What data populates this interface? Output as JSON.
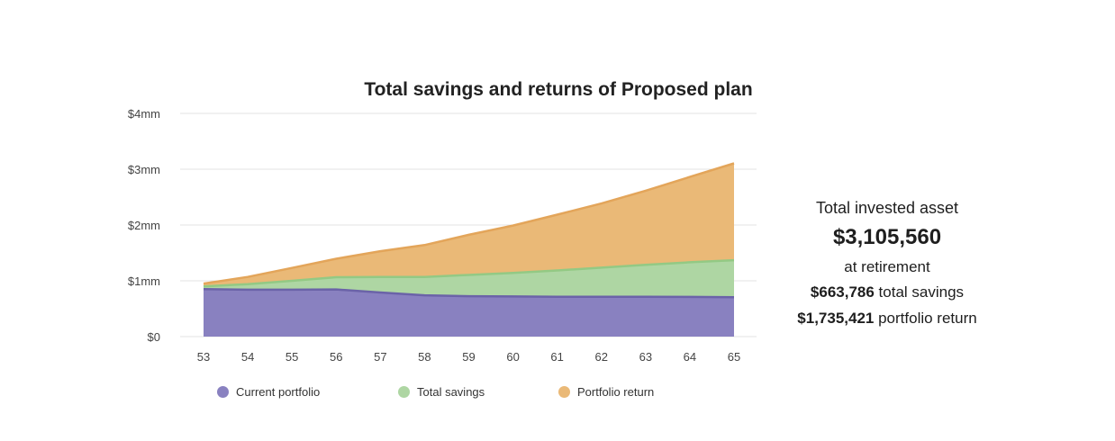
{
  "colors": {
    "current": "#8981c0",
    "savings": "#aed6a3",
    "return": "#eab977",
    "current_line": "#6b63a8",
    "savings_line": "#93c984",
    "return_line": "#e3a55a",
    "grid": "#e3e3e3"
  },
  "chart_data": {
    "type": "area",
    "title": "Total savings and returns of Proposed plan",
    "stacked": true,
    "x": [
      "53",
      "54",
      "55",
      "56",
      "57",
      "58",
      "59",
      "60",
      "61",
      "62",
      "63",
      "64",
      "65"
    ],
    "y_ticks": [
      "$0",
      "$1mm",
      "$2mm",
      "$3mm",
      "$4mm"
    ],
    "ylim": [
      0,
      4000000
    ],
    "legend_position": "bottom",
    "series": [
      {
        "name": "Current portfolio",
        "key": "current",
        "values": [
          850000,
          840000,
          840000,
          845000,
          790000,
          740000,
          725000,
          720000,
          715000,
          715000,
          715000,
          712000,
          706353
        ]
      },
      {
        "name": "Total savings",
        "key": "savings",
        "values": [
          50000,
          100000,
          160000,
          220000,
          280000,
          330000,
          380000,
          420000,
          470000,
          520000,
          570000,
          620000,
          663786
        ]
      },
      {
        "name": "Portfolio return",
        "key": "return",
        "values": [
          50000,
          130000,
          230000,
          330000,
          460000,
          570000,
          720000,
          850000,
          1000000,
          1150000,
          1330000,
          1530000,
          1735421
        ]
      }
    ]
  },
  "summary": {
    "label": "Total invested asset",
    "amount": "$3,105,560",
    "when": "at retirement",
    "savings_amount": "$663,786",
    "savings_text": " total savings",
    "return_amount": "$1,735,421",
    "return_text": " portfolio return"
  },
  "legend": [
    {
      "key": "current",
      "label": "Current portfolio"
    },
    {
      "key": "savings",
      "label": "Total savings"
    },
    {
      "key": "return",
      "label": "Portfolio return"
    }
  ]
}
